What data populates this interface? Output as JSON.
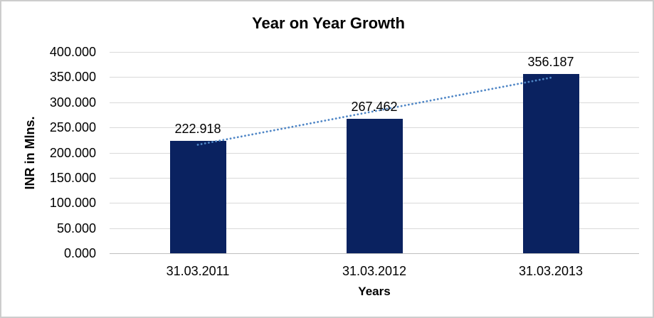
{
  "chart_data": {
    "type": "bar",
    "title": "Year on Year Growth",
    "xlabel": "Years",
    "ylabel": "INR in Mlns.",
    "categories": [
      "31.03.2011",
      "31.03.2012",
      "31.03.2013"
    ],
    "values": [
      222.918,
      267.462,
      356.187
    ],
    "data_labels": [
      "222.918",
      "267.462",
      "356.187"
    ],
    "ylim": [
      0,
      400
    ],
    "ytick_step": 50,
    "ytick_labels": [
      "0.000",
      "50.000",
      "100.000",
      "150.000",
      "200.000",
      "250.000",
      "300.000",
      "350.000",
      "400.000"
    ],
    "grid": true,
    "legend_position": "none",
    "trendline": {
      "type": "linear",
      "style": "dotted"
    },
    "colors": {
      "bar": "#0a2260",
      "trendline": "#4f86c6",
      "gridline": "#d9d9d9",
      "axis_line": "#bfbfbf",
      "text": "#000000",
      "background": "#ffffff",
      "frame_border": "#cdcdcd"
    }
  }
}
